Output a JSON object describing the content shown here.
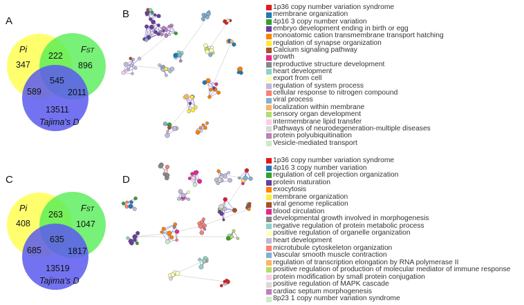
{
  "panels": {
    "a": "A",
    "b": "B",
    "c": "C",
    "d": "D"
  },
  "venn_top": {
    "pi_label": "Pi",
    "fst_label": "F",
    "fst_sub": "ST",
    "tajima_label": "Tajima's D",
    "pi_only": "347",
    "pi_fst": "222",
    "fst_only": "896",
    "all": "545",
    "pi_taj": "589",
    "fst_taj": "2011",
    "taj_only": "13511"
  },
  "venn_bottom": {
    "pi_label": "Pi",
    "fst_label": "F",
    "fst_sub": "ST",
    "tajima_label": "Tajima's D",
    "pi_only": "408",
    "pi_fst": "263",
    "fst_only": "1047",
    "all": "635",
    "pi_taj": "685",
    "fst_taj": "1817",
    "taj_only": "13519"
  },
  "colors": {
    "pi": "#ffff55",
    "fst": "#55ee55",
    "tajima": "#5a5aee"
  },
  "legend_top": [
    {
      "label": "1p36 copy number variation syndrome",
      "color": "#e31a1c"
    },
    {
      "label": "membrane organization",
      "color": "#1f78b4"
    },
    {
      "label": "4p16 3 copy number variation",
      "color": "#33a02c"
    },
    {
      "label": "embryo development ending in birth or egg",
      "color": "#6a3d9a"
    },
    {
      "label": "monoatomic cation transmembrane transport hatching",
      "color": "#ff7f00"
    },
    {
      "label": "regulation of synapse organization",
      "color": "#ffe940"
    },
    {
      "label": "Calcium signaling pathway",
      "color": "#a6522a"
    },
    {
      "label": "growth",
      "color": "#e7298a"
    },
    {
      "label": "reproductive structure development",
      "color": "#888888"
    },
    {
      "label": "heart development",
      "color": "#8dd3c7"
    },
    {
      "label": "export from cell",
      "color": "#ffffb3"
    },
    {
      "label": "regulation of system process",
      "color": "#bebada"
    },
    {
      "label": "cellular response to nitrogen compound",
      "color": "#fb8072"
    },
    {
      "label": "viral process",
      "color": "#80b1d3"
    },
    {
      "label": "localization within membrane",
      "color": "#fdb462"
    },
    {
      "label": "sensory organ development",
      "color": "#b3de69"
    },
    {
      "label": "intermembrane lipid transfer",
      "color": "#fccde5"
    },
    {
      "label": "Pathways of neurodegeneration-multiple diseases",
      "color": "#d9d9d9"
    },
    {
      "label": "protein polyubiquitination",
      "color": "#bc80bd"
    },
    {
      "label": "Vesicle-mediated transport",
      "color": "#ccebc5"
    }
  ],
  "legend_bottom": [
    {
      "label": "1p36 copy number variation syndrome",
      "color": "#e31a1c"
    },
    {
      "label": "4p16 3 copy number variation",
      "color": "#1f78b4"
    },
    {
      "label": "regulation of cell projection organization",
      "color": "#33a02c"
    },
    {
      "label": "protein maturation",
      "color": "#6a3d9a"
    },
    {
      "label": "exocytosis",
      "color": "#ff7f00"
    },
    {
      "label": "membrane organization",
      "color": "#ffe940"
    },
    {
      "label": "viral genome replication",
      "color": "#a6522a"
    },
    {
      "label": "blood circulation",
      "color": "#e7298a"
    },
    {
      "label": "developmental growth involved in morphogenesis",
      "color": "#888888"
    },
    {
      "label": "negative regulation of protein metabolic process",
      "color": "#8dd3c7"
    },
    {
      "label": "positive regulation of organelle organization",
      "color": "#ffffb3"
    },
    {
      "label": "heart development",
      "color": "#bebada"
    },
    {
      "label": "microtubule cytoskeleton organization",
      "color": "#fb8072"
    },
    {
      "label": "Vascular smooth muscle contraction",
      "color": "#80b1d3"
    },
    {
      "label": "regulation of transcription elongation by RNA polymerase II",
      "color": "#fdb462"
    },
    {
      "label": "positive regulation of production of molecular mediator of immune response",
      "color": "#b3de69"
    },
    {
      "label": "protein modification by small protein conjugation",
      "color": "#fccde5"
    },
    {
      "label": "positive regulation of MAPK cascade",
      "color": "#d9d9d9"
    },
    {
      "label": "cardiac septum morphogenesis",
      "color": "#bc80bd"
    },
    {
      "label": "8p23 1 copy number variation syndrome",
      "color": "#ccebc5"
    }
  ]
}
